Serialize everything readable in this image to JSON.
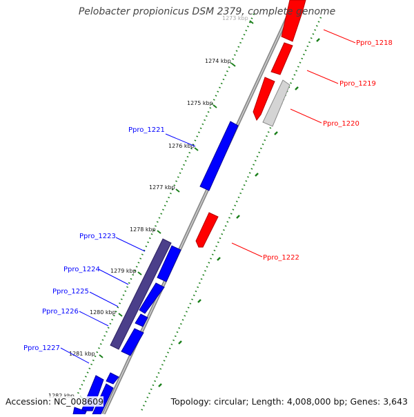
{
  "title": "Pelobacter propionicus DSM 2379, complete genome",
  "footer": {
    "accession": "Accession: NC_008609",
    "summary": "Topology: circular; Length: 4,008,000 bp; Genes: 3,643"
  },
  "ruler": {
    "unit": "kbp",
    "ticks": [
      "1273 kbp",
      "1274 kbp",
      "1275 kbp",
      "1276 kbp",
      "1277 kbp",
      "1278 kbp",
      "1279 kbp",
      "1280 kbp",
      "1281 kbp",
      "1282 kbp"
    ]
  },
  "colors": {
    "forward_gene": "#ff0000",
    "forward_gene_other": "#c8c8c8",
    "reverse_gene": "#0000ff",
    "reverse_gene_other": "#4b3f8a",
    "ruler_dots": "#1a7f1a",
    "backbone": "#888888"
  },
  "genes": {
    "forward": [
      "Ppro_1218",
      "Ppro_1219",
      "Ppro_1220",
      "Ppro_1222"
    ],
    "reverse": [
      "Ppro_1221",
      "Ppro_1223",
      "Ppro_1224",
      "Ppro_1225",
      "Ppro_1226",
      "Ppro_1227"
    ]
  }
}
